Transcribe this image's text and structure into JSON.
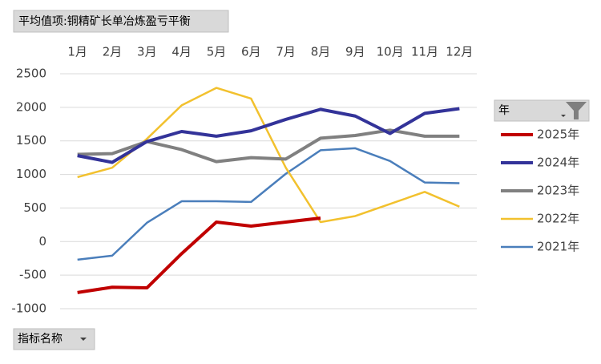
{
  "chart_data": {
    "type": "line",
    "title": "平均值项:铜精矿长单冶炼盈亏平衡",
    "legend_title": "年",
    "category_field": "指标名称",
    "categories": [
      "1月",
      "2月",
      "3月",
      "4月",
      "5月",
      "6月",
      "7月",
      "8月",
      "9月",
      "10月",
      "11月",
      "12月"
    ],
    "ylim": [
      -1000,
      2500
    ],
    "yticks": [
      -1000,
      -500,
      0,
      500,
      1000,
      1500,
      2000,
      2500
    ],
    "grid": true,
    "legend": "right",
    "series": [
      {
        "name": "2025年",
        "color": "#c00000",
        "values": [
          -760,
          -680,
          -690,
          -180,
          290,
          230,
          290,
          350,
          null,
          null,
          null,
          null
        ]
      },
      {
        "name": "2024年",
        "color": "#333399",
        "values": [
          1280,
          1180,
          1490,
          1640,
          1570,
          1650,
          1820,
          1970,
          1870,
          1610,
          1910,
          1980
        ]
      },
      {
        "name": "2023年",
        "color": "#808080",
        "values": [
          1300,
          1310,
          1490,
          1370,
          1190,
          1250,
          1230,
          1540,
          1580,
          1660,
          1570,
          1570
        ]
      },
      {
        "name": "2022年",
        "color": "#f2c12e",
        "values": [
          960,
          1100,
          1530,
          2030,
          2290,
          2130,
          1100,
          290,
          380,
          560,
          740,
          520
        ]
      },
      {
        "name": "2021年",
        "color": "#4a7ebb",
        "values": [
          -270,
          -210,
          280,
          600,
          600,
          590,
          1010,
          1360,
          1390,
          1200,
          880,
          870
        ]
      }
    ]
  }
}
